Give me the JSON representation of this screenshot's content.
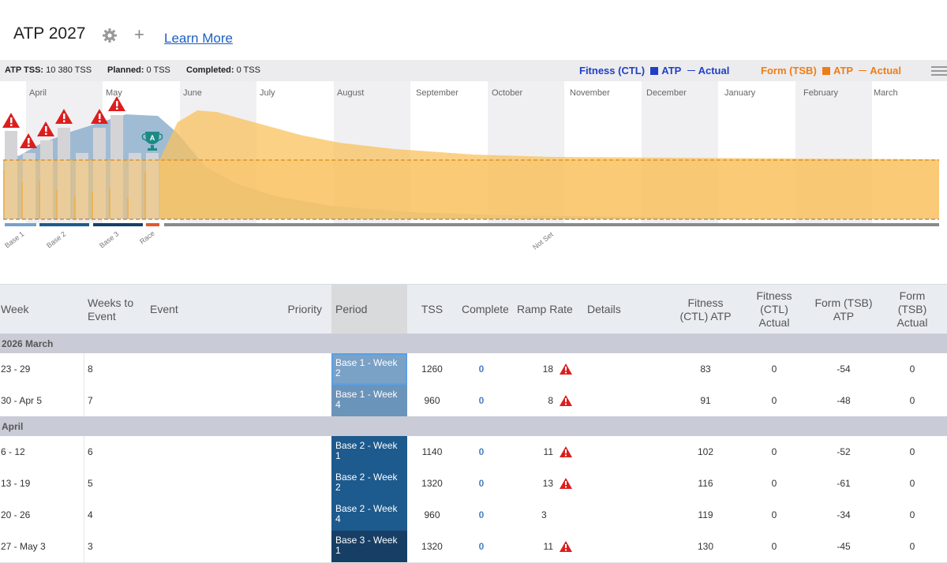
{
  "header": {
    "title": "ATP 2027",
    "learn_more": "Learn More"
  },
  "stats": {
    "atp_tss_label": "ATP TSS:",
    "atp_tss_value": "10 380 TSS",
    "planned_label": "Planned:",
    "planned_value": "0 TSS",
    "completed_label": "Completed:",
    "completed_value": "0 TSS"
  },
  "legend": {
    "fitness": "Fitness (CTL)",
    "fitness_atp": "ATP",
    "fitness_actual": "Actual",
    "form": "Form (TSB)",
    "form_atp": "ATP",
    "form_actual": "Actual",
    "fitness_color": "#1f3fc7",
    "form_color": "#ef7d16"
  },
  "chart_data": {
    "type": "area",
    "months": [
      "April",
      "May",
      "June",
      "July",
      "August",
      "September",
      "October",
      "November",
      "December",
      "January",
      "February",
      "March"
    ],
    "weekly_tss_bars": [
      1260,
      960,
      1140,
      1320,
      960,
      1320,
      1500,
      1500,
      880
    ],
    "fitness_ctl_atp": [
      83,
      91,
      102,
      116,
      119,
      130,
      140,
      140,
      135,
      100,
      60,
      40,
      25,
      15,
      5,
      0
    ],
    "phases": [
      "Base 1",
      "Base 2",
      "Base 3",
      "Race",
      "Not Set"
    ],
    "race_marker": "A",
    "warning_count": 6
  },
  "table": {
    "columns": {
      "week": "Week",
      "weeks_to_event": "Weeks to Event",
      "event": "Event",
      "priority": "Priority",
      "period": "Period",
      "tss": "TSS",
      "completed": "Completed",
      "ramp_rate": "Ramp Rate",
      "details": "Details",
      "fitness_atp": "Fitness (CTL) ATP",
      "fitness_actual": "Fitness (CTL) Actual",
      "form_atp": "Form (TSB) ATP",
      "form_actual": "Form (TSB) Actual"
    },
    "groups": [
      {
        "label": "2026 March",
        "rows": [
          {
            "week": "23 - 29",
            "weeks_to_event": "8",
            "period": "Base 1 - Week 2",
            "tss": "1260",
            "completed": "0",
            "ramp": "18",
            "warn": true,
            "fit_atp": "83",
            "fit_act": "0",
            "form_atp": "-54",
            "form_act": "0"
          },
          {
            "week": "30 - Apr 5",
            "weeks_to_event": "7",
            "period": "Base 1 - Week 4",
            "tss": "960",
            "completed": "0",
            "ramp": "8",
            "warn": true,
            "fit_atp": "91",
            "fit_act": "0",
            "form_atp": "-48",
            "form_act": "0"
          }
        ]
      },
      {
        "label": "April",
        "rows": [
          {
            "week": "6 - 12",
            "weeks_to_event": "6",
            "period": "Base 2 - Week 1",
            "tss": "1140",
            "completed": "0",
            "ramp": "11",
            "warn": true,
            "fit_atp": "102",
            "fit_act": "0",
            "form_atp": "-52",
            "form_act": "0"
          },
          {
            "week": "13 - 19",
            "weeks_to_event": "5",
            "period": "Base 2 - Week 2",
            "tss": "1320",
            "completed": "0",
            "ramp": "13",
            "warn": true,
            "fit_atp": "116",
            "fit_act": "0",
            "form_atp": "-61",
            "form_act": "0"
          },
          {
            "week": "20 - 26",
            "weeks_to_event": "4",
            "period": "Base 2 - Week 4",
            "tss": "960",
            "completed": "0",
            "ramp": "3",
            "warn": false,
            "fit_atp": "119",
            "fit_act": "0",
            "form_atp": "-34",
            "form_act": "0"
          },
          {
            "week": "27 - May 3",
            "weeks_to_event": "3",
            "period": "Base 3 - Week 1",
            "tss": "1320",
            "completed": "0",
            "ramp": "11",
            "warn": true,
            "fit_atp": "130",
            "fit_act": "0",
            "form_atp": "-45",
            "form_act": "0"
          }
        ]
      }
    ]
  }
}
